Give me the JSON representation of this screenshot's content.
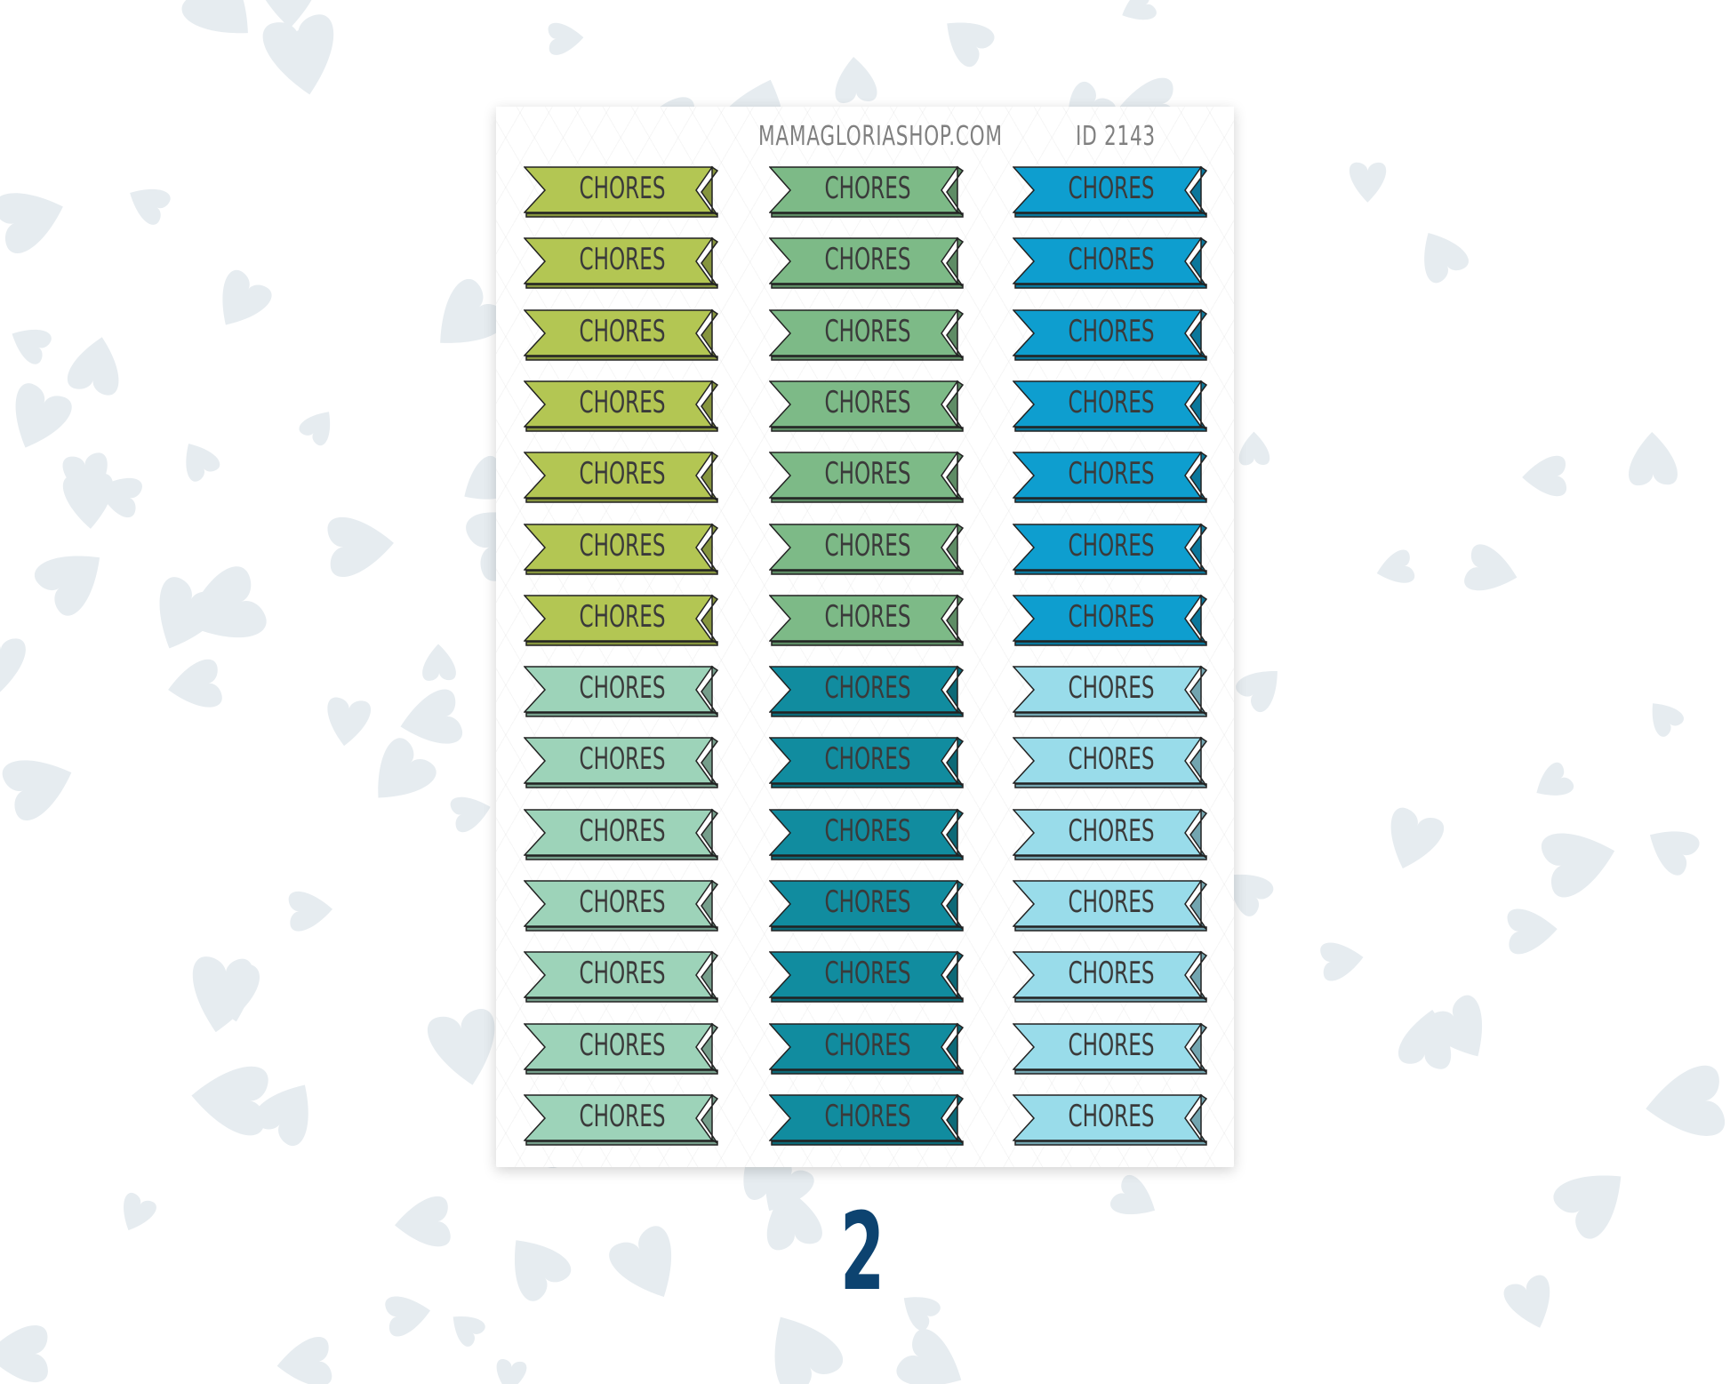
{
  "header": {
    "shop": "MAMAGLORIASHOP.COM",
    "id": "ID 2143"
  },
  "label": "CHORES",
  "rows": 14,
  "columns": [
    {
      "colors": [
        "#b3c653",
        "#b3c653",
        "#b3c653",
        "#b3c653",
        "#b3c653",
        "#b3c653",
        "#b3c653",
        "#9dd3b9",
        "#9dd3b9",
        "#9dd3b9",
        "#9dd3b9",
        "#9dd3b9",
        "#9dd3b9",
        "#9dd3b9"
      ]
    },
    {
      "colors": [
        "#7dba87",
        "#7dba87",
        "#7dba87",
        "#7dba87",
        "#7dba87",
        "#7dba87",
        "#7dba87",
        "#118c9f",
        "#118c9f",
        "#118c9f",
        "#118c9f",
        "#118c9f",
        "#118c9f",
        "#118c9f"
      ]
    },
    {
      "colors": [
        "#0e9ecf",
        "#0e9ecf",
        "#0e9ecf",
        "#0e9ecf",
        "#0e9ecf",
        "#0e9ecf",
        "#0e9ecf",
        "#99dcea",
        "#99dcea",
        "#99dcea",
        "#99dcea",
        "#99dcea",
        "#99dcea",
        "#99dcea"
      ]
    }
  ],
  "variant_number": "2",
  "colors": {
    "background_hearts": "#e6ecf0",
    "number": "#0d4370"
  }
}
